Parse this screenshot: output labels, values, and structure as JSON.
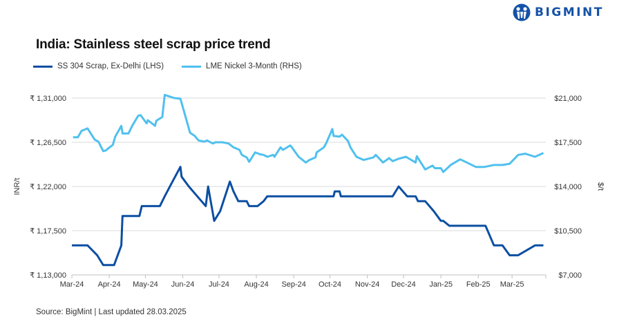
{
  "brand": {
    "name": "BIGMINT",
    "color": "#1452a8"
  },
  "chart_data": {
    "type": "line",
    "title": "India: Stainless steel scrap price trend",
    "source": "Source: BigMint | Last updated 28.03.2025",
    "legend_position": "top-left",
    "grid": true,
    "x_range": [
      "2024-03-01",
      "2025-03-29"
    ],
    "x_ticks": [
      "Mar-24",
      "Apr-24",
      "May-24",
      "Jun-24",
      "Jul-24",
      "Aug-24",
      "Sep-24",
      "Oct-24",
      "Nov-24",
      "Dec-24",
      "Jan-25",
      "Feb-25",
      "Mar-25"
    ],
    "y_left": {
      "label": "INR/t",
      "range": [
        113000,
        131000
      ],
      "ticks": [
        "₹ 1,13,000",
        "₹ 1,17,500",
        "₹ 1,22,000",
        "₹ 1,26,500",
        "₹ 1,31,000"
      ]
    },
    "y_right": {
      "label": "$/t",
      "range": [
        7000,
        21000
      ],
      "ticks": [
        "$7,000",
        "$10,500",
        "$14,000",
        "$17,500",
        "$21,000"
      ]
    },
    "series": [
      {
        "name": "SS 304 Scrap, Ex-Delhi (LHS)",
        "axis": "left",
        "color": "#0b4ea2",
        "points": [
          [
            "2024-03-01",
            116000
          ],
          [
            "2024-03-14",
            116000
          ],
          [
            "2024-03-22",
            115000
          ],
          [
            "2024-03-27",
            114000
          ],
          [
            "2024-04-05",
            114000
          ],
          [
            "2024-04-11",
            116000
          ],
          [
            "2024-04-12",
            119000
          ],
          [
            "2024-04-26",
            119000
          ],
          [
            "2024-04-28",
            120000
          ],
          [
            "2024-05-13",
            120000
          ],
          [
            "2024-05-17",
            121000
          ],
          [
            "2024-05-23",
            122400
          ],
          [
            "2024-05-30",
            124000
          ],
          [
            "2024-05-31",
            123000
          ],
          [
            "2024-06-06",
            122000
          ],
          [
            "2024-06-13",
            121000
          ],
          [
            "2024-06-20",
            120000
          ],
          [
            "2024-06-22",
            122000
          ],
          [
            "2024-06-27",
            118500
          ],
          [
            "2024-07-02",
            119500
          ],
          [
            "2024-07-10",
            122500
          ],
          [
            "2024-07-13",
            121500
          ],
          [
            "2024-07-17",
            120500
          ],
          [
            "2024-07-24",
            120500
          ],
          [
            "2024-07-26",
            120000
          ],
          [
            "2024-08-02",
            120000
          ],
          [
            "2024-08-07",
            120500
          ],
          [
            "2024-08-10",
            121000
          ],
          [
            "2024-10-04",
            121000
          ],
          [
            "2024-10-05",
            121500
          ],
          [
            "2024-10-09",
            121500
          ],
          [
            "2024-10-10",
            121000
          ],
          [
            "2024-11-22",
            121000
          ],
          [
            "2024-11-27",
            122000
          ],
          [
            "2024-12-04",
            121000
          ],
          [
            "2024-12-11",
            121000
          ],
          [
            "2024-12-13",
            120500
          ],
          [
            "2024-12-19",
            120500
          ],
          [
            "2024-12-26",
            119500
          ],
          [
            "2025-01-01",
            118500
          ],
          [
            "2025-01-03",
            118500
          ],
          [
            "2025-01-08",
            118000
          ],
          [
            "2025-02-07",
            118000
          ],
          [
            "2025-02-14",
            116000
          ],
          [
            "2025-02-21",
            116000
          ],
          [
            "2025-02-27",
            115000
          ],
          [
            "2025-03-06",
            115000
          ],
          [
            "2025-03-13",
            115500
          ],
          [
            "2025-03-20",
            116000
          ],
          [
            "2025-03-27",
            116000
          ]
        ]
      },
      {
        "name": "LME Nickel 3-Month (RHS)",
        "axis": "right",
        "color": "#4fc0ef",
        "points": [
          [
            "2024-03-02",
            17900
          ],
          [
            "2024-03-06",
            17900
          ],
          [
            "2024-03-09",
            18400
          ],
          [
            "2024-03-14",
            18600
          ],
          [
            "2024-03-20",
            17700
          ],
          [
            "2024-03-23",
            17550
          ],
          [
            "2024-03-27",
            16800
          ],
          [
            "2024-03-29",
            16850
          ],
          [
            "2024-04-04",
            17300
          ],
          [
            "2024-04-06",
            17950
          ],
          [
            "2024-04-11",
            18800
          ],
          [
            "2024-04-12",
            18200
          ],
          [
            "2024-04-17",
            18200
          ],
          [
            "2024-04-20",
            18800
          ],
          [
            "2024-04-25",
            19600
          ],
          [
            "2024-04-27",
            19650
          ],
          [
            "2024-05-02",
            19000
          ],
          [
            "2024-05-03",
            19250
          ],
          [
            "2024-05-09",
            18800
          ],
          [
            "2024-05-10",
            19200
          ],
          [
            "2024-05-15",
            19500
          ],
          [
            "2024-05-17",
            21250
          ],
          [
            "2024-05-25",
            21000
          ],
          [
            "2024-05-30",
            20950
          ],
          [
            "2024-06-07",
            18250
          ],
          [
            "2024-06-11",
            18000
          ],
          [
            "2024-06-14",
            17650
          ],
          [
            "2024-06-19",
            17550
          ],
          [
            "2024-06-21",
            17650
          ],
          [
            "2024-06-26",
            17400
          ],
          [
            "2024-06-28",
            17500
          ],
          [
            "2024-07-04",
            17500
          ],
          [
            "2024-07-09",
            17400
          ],
          [
            "2024-07-13",
            17100
          ],
          [
            "2024-07-18",
            16900
          ],
          [
            "2024-07-20",
            16500
          ],
          [
            "2024-07-24",
            16300
          ],
          [
            "2024-07-26",
            15950
          ],
          [
            "2024-07-31",
            16700
          ],
          [
            "2024-08-04",
            16550
          ],
          [
            "2024-08-07",
            16500
          ],
          [
            "2024-08-10",
            16350
          ],
          [
            "2024-08-15",
            16500
          ],
          [
            "2024-08-16",
            16350
          ],
          [
            "2024-08-21",
            17100
          ],
          [
            "2024-08-23",
            16900
          ],
          [
            "2024-08-29",
            17250
          ],
          [
            "2024-08-30",
            17150
          ],
          [
            "2024-09-05",
            16350
          ],
          [
            "2024-09-11",
            15900
          ],
          [
            "2024-09-14",
            16100
          ],
          [
            "2024-09-19",
            16300
          ],
          [
            "2024-09-20",
            16700
          ],
          [
            "2024-09-26",
            17100
          ],
          [
            "2024-09-28",
            17450
          ],
          [
            "2024-10-03",
            18550
          ],
          [
            "2024-10-04",
            18000
          ],
          [
            "2024-10-09",
            17950
          ],
          [
            "2024-10-11",
            18100
          ],
          [
            "2024-10-16",
            17600
          ],
          [
            "2024-10-18",
            17100
          ],
          [
            "2024-10-23",
            16350
          ],
          [
            "2024-10-29",
            16100
          ],
          [
            "2024-11-06",
            16300
          ],
          [
            "2024-11-08",
            16500
          ],
          [
            "2024-11-14",
            15900
          ],
          [
            "2024-11-19",
            16250
          ],
          [
            "2024-11-22",
            16000
          ],
          [
            "2024-11-27",
            16200
          ],
          [
            "2024-12-03",
            16350
          ],
          [
            "2024-12-11",
            15900
          ],
          [
            "2024-12-12",
            16400
          ],
          [
            "2024-12-19",
            15350
          ],
          [
            "2024-12-25",
            15650
          ],
          [
            "2024-12-27",
            15450
          ],
          [
            "2025-01-01",
            15450
          ],
          [
            "2025-01-03",
            15150
          ],
          [
            "2025-01-08",
            15600
          ],
          [
            "2025-01-09",
            15700
          ],
          [
            "2025-01-17",
            16150
          ],
          [
            "2025-01-30",
            15550
          ],
          [
            "2025-02-06",
            15550
          ],
          [
            "2025-02-14",
            15700
          ],
          [
            "2025-02-21",
            15700
          ],
          [
            "2025-02-27",
            15800
          ],
          [
            "2025-03-06",
            16500
          ],
          [
            "2025-03-12",
            16600
          ],
          [
            "2025-03-20",
            16350
          ],
          [
            "2025-03-27",
            16650
          ]
        ]
      }
    ]
  }
}
